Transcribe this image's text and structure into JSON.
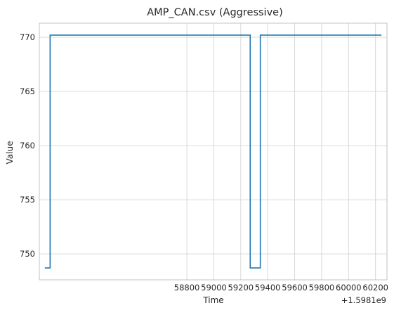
{
  "chart_data": {
    "type": "line",
    "title": "AMP_CAN.csv (Aggressive)",
    "xlabel": "Time",
    "ylabel": "Value",
    "x_offset_label": "+1.5981e9",
    "x_ticks": [
      58800,
      59000,
      59200,
      59400,
      59600,
      59800,
      60000,
      60200
    ],
    "y_ticks": [
      750,
      755,
      760,
      765,
      770
    ],
    "xlim": [
      57705,
      60285
    ],
    "ylim": [
      747.6,
      771.3
    ],
    "grid": true,
    "series": [
      {
        "color": "#1f77b4",
        "step_points": [
          [
            57750,
            748.7
          ],
          [
            57785,
            748.7
          ],
          [
            57785,
            770.2
          ],
          [
            59270,
            770.2
          ],
          [
            59270,
            748.7
          ],
          [
            59345,
            748.7
          ],
          [
            59345,
            770.2
          ],
          [
            60240,
            770.2
          ]
        ]
      }
    ]
  }
}
